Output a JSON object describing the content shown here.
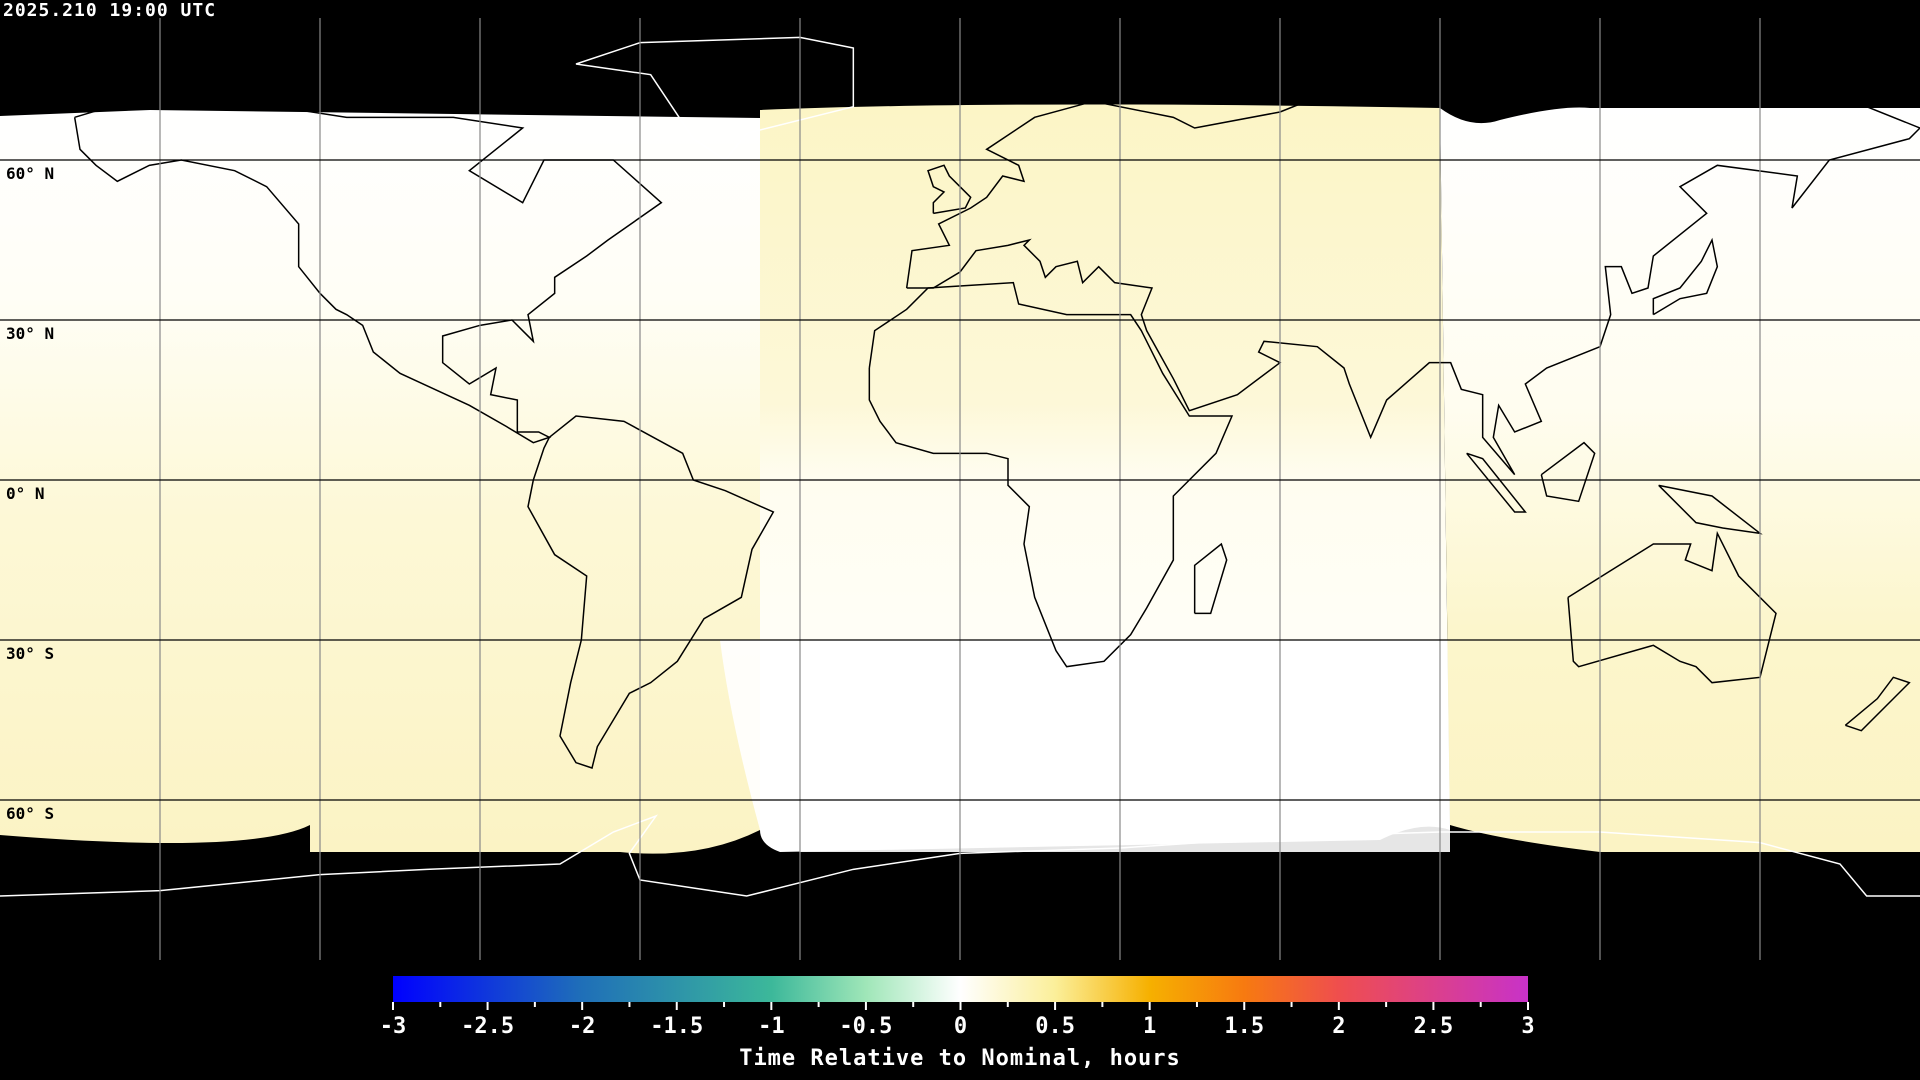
{
  "title": "2025.210 19:00 UTC",
  "lat_labels": [
    "60° N",
    "30° N",
    "0° N",
    "30° S",
    "60° S"
  ],
  "colorbar": {
    "label": "Time Relative to Nominal, hours",
    "range": [
      -3,
      3
    ],
    "ticks": [
      "-3",
      "-2.5",
      "-2",
      "-1.5",
      "-1",
      "-0.5",
      "0",
      "0.5",
      "1",
      "1.5",
      "2",
      "2.5",
      "3"
    ],
    "stops": [
      {
        "value": -3,
        "color": "#0000ff"
      },
      {
        "value": -2,
        "color": "#1f6fb8"
      },
      {
        "value": -1,
        "color": "#3cb89a"
      },
      {
        "value": -0.5,
        "color": "#9fe6b8"
      },
      {
        "value": 0,
        "color": "#ffffff"
      },
      {
        "value": 0.5,
        "color": "#fbef9a"
      },
      {
        "value": 1,
        "color": "#f6b000"
      },
      {
        "value": 1.5,
        "color": "#f77a10"
      },
      {
        "value": 2,
        "color": "#ef4e4e"
      },
      {
        "value": 3,
        "color": "#c832c8"
      }
    ]
  },
  "colors": {
    "background": "#000000",
    "near_zero": "#fffef5",
    "slightly_late": "#fcf6c6",
    "grid": "#000000",
    "coast": "#000000"
  }
}
